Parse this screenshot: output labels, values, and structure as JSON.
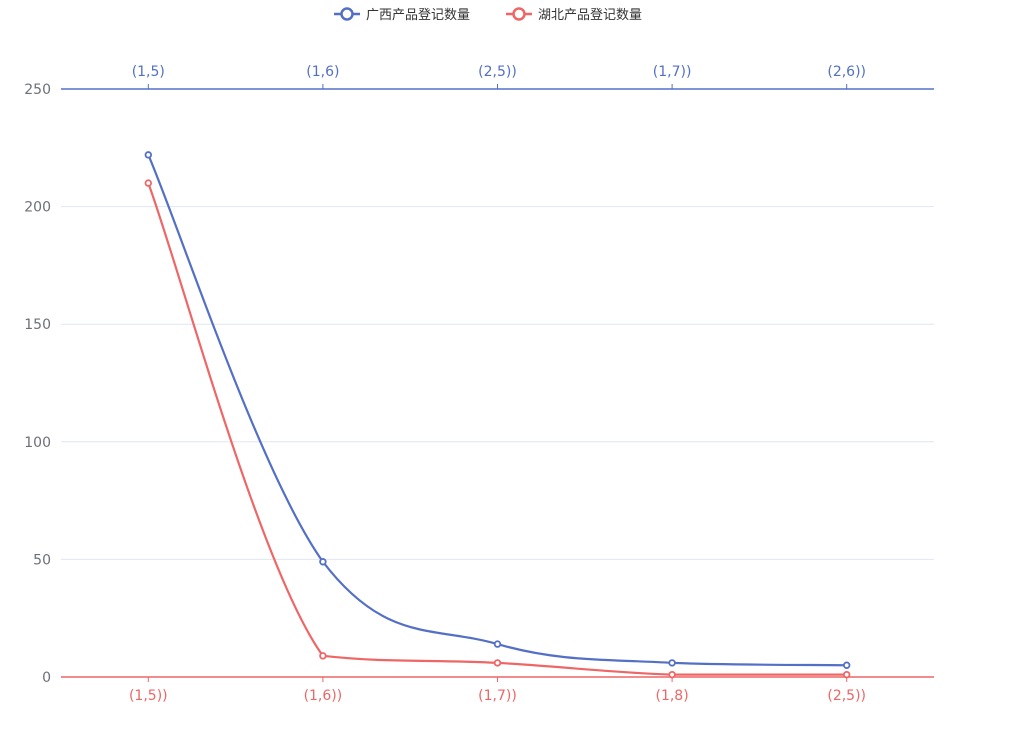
{
  "chart_data": {
    "type": "line",
    "smooth": true,
    "ylim": [
      0,
      250
    ],
    "yticks": [
      0,
      50,
      100,
      150,
      200,
      250
    ],
    "grid": true,
    "legend_position": "top-center",
    "series": [
      {
        "name": "广西产品登记数量",
        "color": "#5470c6",
        "axis": "top",
        "categories": [
          "(1,5)",
          "(1,6)",
          "(2,5))",
          "(1,7))",
          "(2,6))"
        ],
        "values": [
          222,
          49,
          14,
          6,
          5
        ]
      },
      {
        "name": "湖北产品登记数量",
        "color": "#ee6666",
        "axis": "bottom",
        "categories": [
          "(1,5))",
          "(1,6))",
          "(1,7))",
          "(1,8)",
          "(2,5))"
        ],
        "values": [
          210,
          9,
          6,
          1,
          1
        ]
      }
    ]
  }
}
